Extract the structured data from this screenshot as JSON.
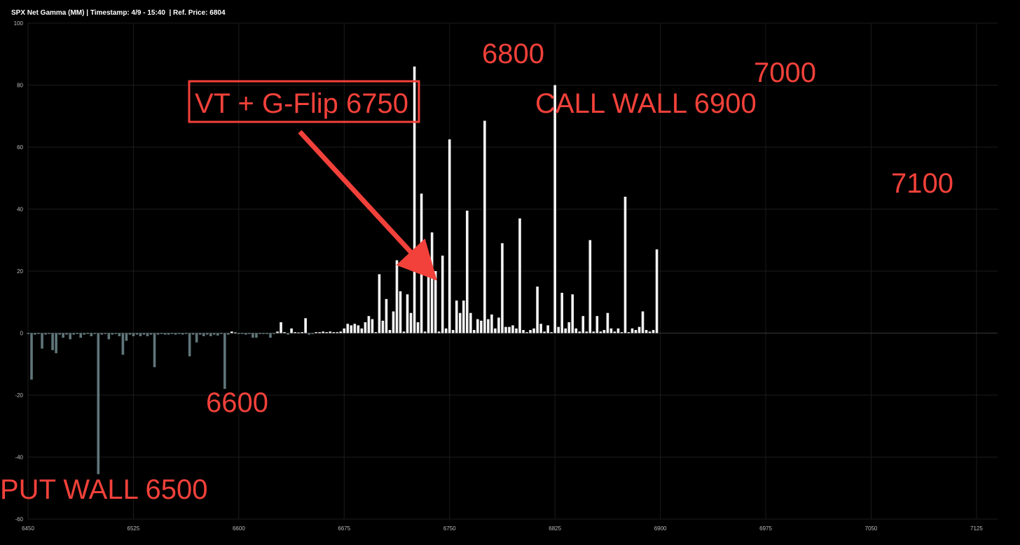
{
  "chart_data": {
    "type": "bar",
    "title": "SPX Net Gamma (MM) | Timestamp: 4/9 - 15:40  | Ref. Price: 6804",
    "xlabel": "",
    "ylabel": "",
    "ylim": [
      -60,
      100
    ],
    "xlim": [
      6450,
      7140
    ],
    "grid": true,
    "y_ticks": [
      "100",
      "80",
      "60",
      "40",
      "20",
      "0",
      "-20",
      "-40",
      "-60"
    ],
    "y_tick_values": [
      100,
      80,
      60,
      40,
      20,
      0,
      -20,
      -40,
      -60
    ],
    "x_ticks": [
      "6450",
      "6525",
      "6600",
      "6675",
      "6750",
      "6825",
      "6900",
      "6975",
      "7050",
      "7125"
    ],
    "x_tick_values": [
      6450,
      6525,
      6600,
      6675,
      6750,
      6825,
      6900,
      6975,
      7050,
      7125
    ],
    "colors": {
      "positive": "#f4f4f4",
      "negative": "#5f7579",
      "annotation": "#f2413a",
      "grid": "#1c1c1c"
    },
    "bars": [
      {
        "x": 6450,
        "y": -0.3
      },
      {
        "x": 6452.5,
        "y": -15
      },
      {
        "x": 6455,
        "y": -0.5
      },
      {
        "x": 6457.5,
        "y": -0.3
      },
      {
        "x": 6460,
        "y": -5
      },
      {
        "x": 6462.5,
        "y": -0.5
      },
      {
        "x": 6465,
        "y": -0.3
      },
      {
        "x": 6467.5,
        "y": -5.5
      },
      {
        "x": 6470,
        "y": -6.5
      },
      {
        "x": 6472.5,
        "y": -0.5
      },
      {
        "x": 6475,
        "y": -1.5
      },
      {
        "x": 6477.5,
        "y": -0.5
      },
      {
        "x": 6480,
        "y": -2
      },
      {
        "x": 6482.5,
        "y": -0.5
      },
      {
        "x": 6485,
        "y": -0.3
      },
      {
        "x": 6487.5,
        "y": -1.5
      },
      {
        "x": 6490,
        "y": -0.5
      },
      {
        "x": 6492.5,
        "y": -0.3
      },
      {
        "x": 6495,
        "y": -1
      },
      {
        "x": 6497.5,
        "y": -0.3
      },
      {
        "x": 6500,
        "y": -45.5
      },
      {
        "x": 6502.5,
        "y": -0.5
      },
      {
        "x": 6505,
        "y": -0.3
      },
      {
        "x": 6507.5,
        "y": -2
      },
      {
        "x": 6510,
        "y": -0.5
      },
      {
        "x": 6512.5,
        "y": -0.3
      },
      {
        "x": 6515,
        "y": -1
      },
      {
        "x": 6517.5,
        "y": -7
      },
      {
        "x": 6520,
        "y": -2.5
      },
      {
        "x": 6522.5,
        "y": -0.5
      },
      {
        "x": 6525,
        "y": -1
      },
      {
        "x": 6527.5,
        "y": -0.5
      },
      {
        "x": 6530,
        "y": -1
      },
      {
        "x": 6532.5,
        "y": -0.5
      },
      {
        "x": 6535,
        "y": -1
      },
      {
        "x": 6537.5,
        "y": -0.5
      },
      {
        "x": 6540,
        "y": -11
      },
      {
        "x": 6542.5,
        "y": -0.5
      },
      {
        "x": 6545,
        "y": -0.3
      },
      {
        "x": 6547.5,
        "y": -0.5
      },
      {
        "x": 6550,
        "y": -0.5
      },
      {
        "x": 6552.5,
        "y": -0.3
      },
      {
        "x": 6555,
        "y": -0.5
      },
      {
        "x": 6557.5,
        "y": -0.3
      },
      {
        "x": 6560,
        "y": -0.5
      },
      {
        "x": 6562.5,
        "y": -0.3
      },
      {
        "x": 6565,
        "y": -7.5
      },
      {
        "x": 6567.5,
        "y": -0.5
      },
      {
        "x": 6570,
        "y": -3
      },
      {
        "x": 6572.5,
        "y": -0.5
      },
      {
        "x": 6575,
        "y": -1
      },
      {
        "x": 6577.5,
        "y": -0.5
      },
      {
        "x": 6580,
        "y": -1
      },
      {
        "x": 6582.5,
        "y": -0.5
      },
      {
        "x": 6585,
        "y": -0.8
      },
      {
        "x": 6587.5,
        "y": -0.3
      },
      {
        "x": 6590,
        "y": -18
      },
      {
        "x": 6592.5,
        "y": -0.5
      },
      {
        "x": 6595,
        "y": 0.5
      },
      {
        "x": 6597.5,
        "y": 0.2
      },
      {
        "x": 6600,
        "y": -0.3
      },
      {
        "x": 6602.5,
        "y": -0.3
      },
      {
        "x": 6605,
        "y": -0.5
      },
      {
        "x": 6607.5,
        "y": -0.3
      },
      {
        "x": 6610,
        "y": -1.5
      },
      {
        "x": 6612.5,
        "y": -1.5
      },
      {
        "x": 6615,
        "y": -0.3
      },
      {
        "x": 6617.5,
        "y": -0.3
      },
      {
        "x": 6620,
        "y": -0.3
      },
      {
        "x": 6622.5,
        "y": -1.5
      },
      {
        "x": 6625,
        "y": -0.3
      },
      {
        "x": 6627.5,
        "y": 0.5
      },
      {
        "x": 6630,
        "y": 3.5
      },
      {
        "x": 6632.5,
        "y": 0.3
      },
      {
        "x": 6635,
        "y": -0.5
      },
      {
        "x": 6637.5,
        "y": 1.5
      },
      {
        "x": 6640,
        "y": 0.3
      },
      {
        "x": 6642.5,
        "y": 0.2
      },
      {
        "x": 6645,
        "y": 0.3
      },
      {
        "x": 6647.5,
        "y": 4.8
      },
      {
        "x": 6650,
        "y": -0.5
      },
      {
        "x": 6652.5,
        "y": -0.3
      },
      {
        "x": 6655,
        "y": 0.3
      },
      {
        "x": 6657.5,
        "y": 0.3
      },
      {
        "x": 6660,
        "y": 0.5
      },
      {
        "x": 6662.5,
        "y": 0.3
      },
      {
        "x": 6665,
        "y": 0.5
      },
      {
        "x": 6667.5,
        "y": 0.3
      },
      {
        "x": 6670,
        "y": 0.3
      },
      {
        "x": 6672.5,
        "y": 0.5
      },
      {
        "x": 6675,
        "y": 1.5
      },
      {
        "x": 6677.5,
        "y": 3
      },
      {
        "x": 6680,
        "y": 2.5
      },
      {
        "x": 6682.5,
        "y": 3
      },
      {
        "x": 6685,
        "y": 2.5
      },
      {
        "x": 6687.5,
        "y": 1.5
      },
      {
        "x": 6690,
        "y": 3.5
      },
      {
        "x": 6692.5,
        "y": 5.5
      },
      {
        "x": 6695,
        "y": 4.5
      },
      {
        "x": 6697.5,
        "y": 0.3
      },
      {
        "x": 6700,
        "y": 19
      },
      {
        "x": 6702.5,
        "y": 4
      },
      {
        "x": 6705,
        "y": 11
      },
      {
        "x": 6707.5,
        "y": 1
      },
      {
        "x": 6710,
        "y": 7
      },
      {
        "x": 6712.5,
        "y": 23.5
      },
      {
        "x": 6715,
        "y": 13.5
      },
      {
        "x": 6717.5,
        "y": 0.5
      },
      {
        "x": 6720,
        "y": 12.5
      },
      {
        "x": 6722.5,
        "y": 6.5
      },
      {
        "x": 6725,
        "y": 86
      },
      {
        "x": 6727.5,
        "y": 3.5
      },
      {
        "x": 6730,
        "y": 45
      },
      {
        "x": 6732.5,
        "y": 0.5
      },
      {
        "x": 6735,
        "y": 18.5
      },
      {
        "x": 6737.5,
        "y": 32.5
      },
      {
        "x": 6740,
        "y": 20
      },
      {
        "x": 6742.5,
        "y": 0.5
      },
      {
        "x": 6745,
        "y": 25
      },
      {
        "x": 6747.5,
        "y": 1.5
      },
      {
        "x": 6750,
        "y": 62.5
      },
      {
        "x": 6752.5,
        "y": 1
      },
      {
        "x": 6755,
        "y": 10.5
      },
      {
        "x": 6757.5,
        "y": 6.5
      },
      {
        "x": 6760,
        "y": 10.5
      },
      {
        "x": 6762.5,
        "y": 39.5
      },
      {
        "x": 6765,
        "y": 6.5
      },
      {
        "x": 6767.5,
        "y": 1
      },
      {
        "x": 6770,
        "y": 4.5
      },
      {
        "x": 6772.5,
        "y": 4
      },
      {
        "x": 6775,
        "y": 68.5
      },
      {
        "x": 6777.5,
        "y": 4.5
      },
      {
        "x": 6780,
        "y": 6
      },
      {
        "x": 6782.5,
        "y": 1.5
      },
      {
        "x": 6785,
        "y": 5
      },
      {
        "x": 6787.5,
        "y": 29
      },
      {
        "x": 6790,
        "y": 2
      },
      {
        "x": 6792.5,
        "y": 2
      },
      {
        "x": 6795,
        "y": 2.5
      },
      {
        "x": 6797.5,
        "y": 1.5
      },
      {
        "x": 6800,
        "y": 37
      },
      {
        "x": 6802.5,
        "y": 1
      },
      {
        "x": 6805,
        "y": 0.3
      },
      {
        "x": 6807.5,
        "y": 1
      },
      {
        "x": 6810,
        "y": 1.5
      },
      {
        "x": 6812.5,
        "y": 15
      },
      {
        "x": 6815,
        "y": 3
      },
      {
        "x": 6817.5,
        "y": 0.5
      },
      {
        "x": 6820,
        "y": 2.5
      },
      {
        "x": 6822.5,
        "y": 0.3
      },
      {
        "x": 6825,
        "y": 80
      },
      {
        "x": 6827.5,
        "y": 2
      },
      {
        "x": 6830,
        "y": 13
      },
      {
        "x": 6832.5,
        "y": 1.5
      },
      {
        "x": 6835,
        "y": 3.5
      },
      {
        "x": 6837.5,
        "y": 12.5
      },
      {
        "x": 6840,
        "y": 1.5
      },
      {
        "x": 6842.5,
        "y": 0.5
      },
      {
        "x": 6845,
        "y": 5.5
      },
      {
        "x": 6847.5,
        "y": 0.5
      },
      {
        "x": 6850,
        "y": 30
      },
      {
        "x": 6852.5,
        "y": 0.5
      },
      {
        "x": 6855,
        "y": 5.5
      },
      {
        "x": 6857.5,
        "y": 0.5
      },
      {
        "x": 6860,
        "y": 1
      },
      {
        "x": 6862.5,
        "y": 6.5
      },
      {
        "x": 6865,
        "y": 1.5
      },
      {
        "x": 6867.5,
        "y": 0.5
      },
      {
        "x": 6870,
        "y": 1.5
      },
      {
        "x": 6872.5,
        "y": 0.3
      },
      {
        "x": 6875,
        "y": 44
      },
      {
        "x": 6877.5,
        "y": 0.3
      },
      {
        "x": 6880,
        "y": 1.5
      },
      {
        "x": 6882.5,
        "y": 1
      },
      {
        "x": 6885,
        "y": 2
      },
      {
        "x": 6887.5,
        "y": 7
      },
      {
        "x": 6890,
        "y": 1
      },
      {
        "x": 6892.5,
        "y": 0.5
      },
      {
        "x": 6895,
        "y": 1
      },
      {
        "x": 6897.5,
        "y": 27
      }
    ],
    "annotations": [
      {
        "text": "6800",
        "type": "label"
      },
      {
        "text": "7000",
        "type": "label"
      },
      {
        "text": "CALL WALL 6900",
        "type": "label"
      },
      {
        "text": "VT + G-Flip 6750",
        "type": "boxed-label"
      },
      {
        "text": "7100",
        "type": "label"
      },
      {
        "text": "6600",
        "type": "label"
      },
      {
        "text": "PUT WALL 6500",
        "type": "label"
      }
    ]
  }
}
